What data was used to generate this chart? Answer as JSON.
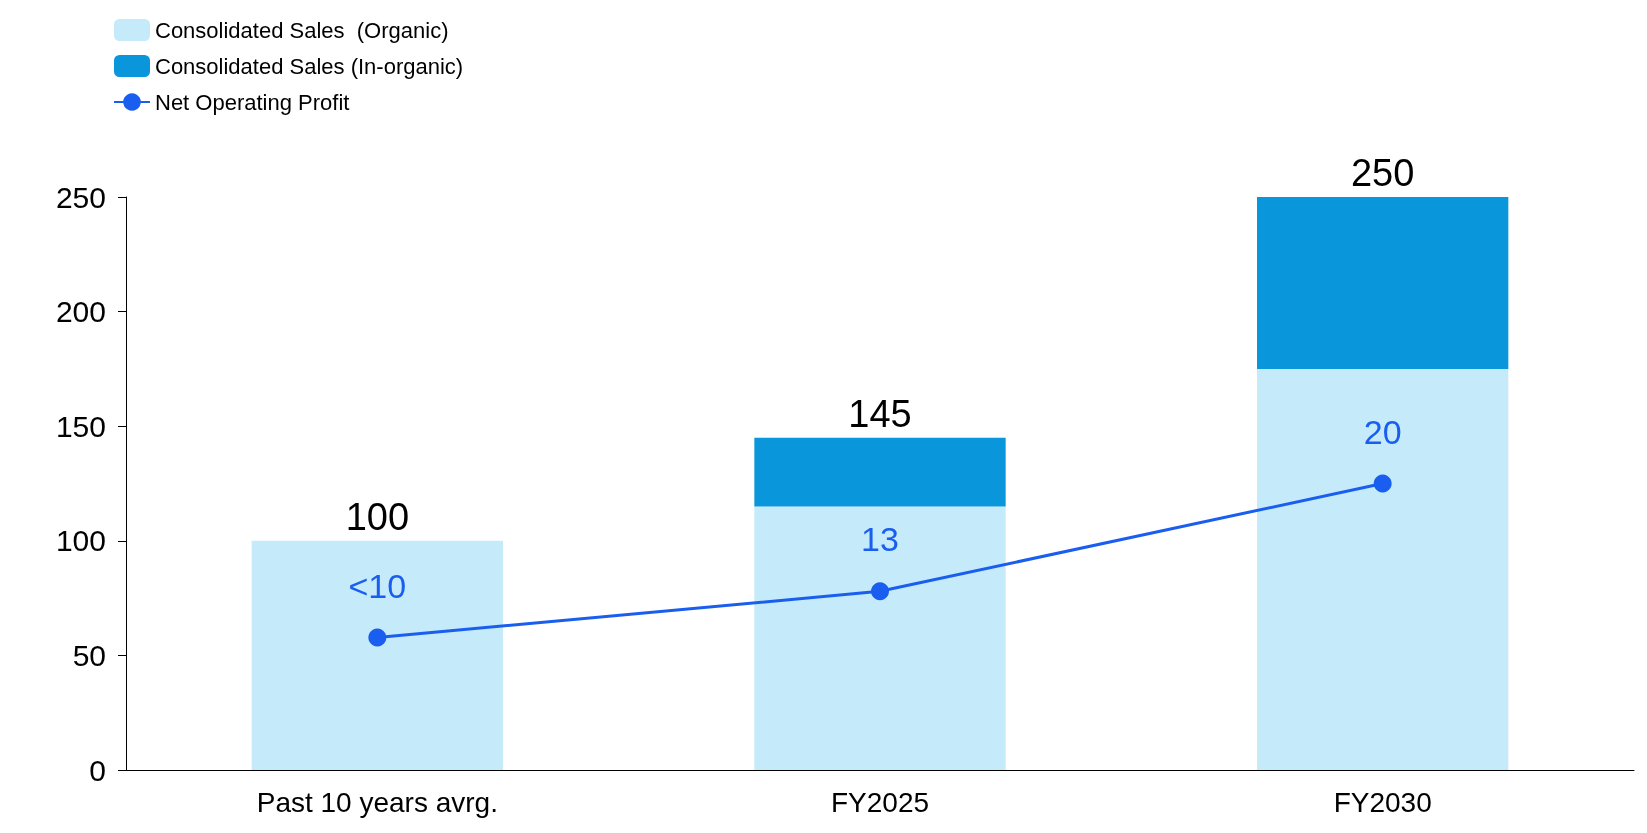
{
  "chart_data": {
    "type": "bar",
    "stacked": true,
    "categories": [
      "Past 10 years avrg.",
      "FY2025",
      "FY2030"
    ],
    "series": [
      {
        "name": "Consolidated Sales  (Organic)",
        "color": "#c5ebfb",
        "values": [
          100,
          115,
          175
        ]
      },
      {
        "name": "Consolidated Sales (In-organic)",
        "color": "#0a96da",
        "values": [
          0,
          30,
          75
        ]
      },
      {
        "name": "Net Operating Profit",
        "type": "line",
        "axis": "y2",
        "color": "#1a5ef0",
        "values": [
          10,
          13,
          20
        ],
        "value_labels": [
          "<10",
          "13",
          "20"
        ]
      }
    ],
    "totals": [
      "100",
      "145",
      "250"
    ],
    "ylim": [
      0,
      250
    ],
    "yticks": [
      0,
      50,
      100,
      150,
      200,
      250
    ],
    "y2lim": [
      1.4,
      38.6
    ],
    "grid": false,
    "legend": "top left",
    "marker": "circle",
    "line_style": "solid"
  }
}
